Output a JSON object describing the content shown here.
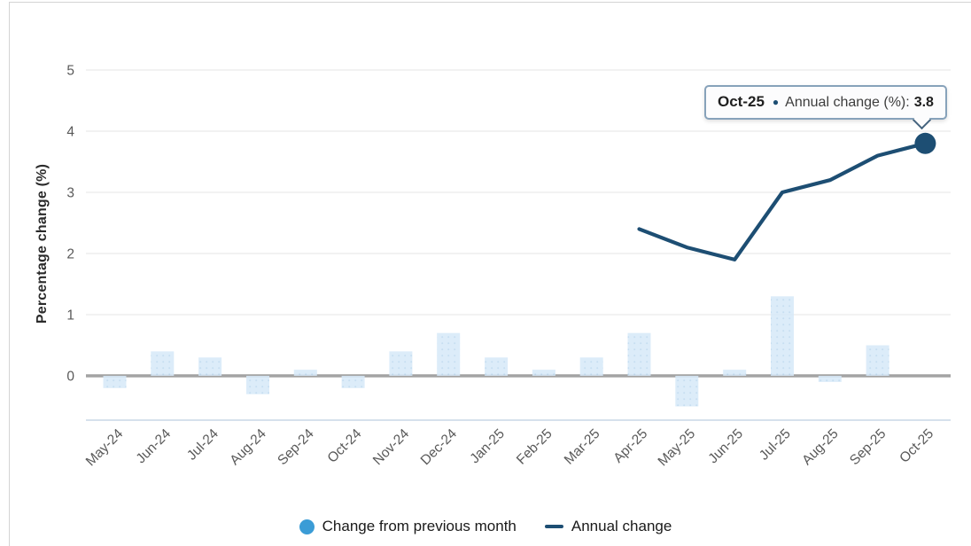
{
  "chart": {
    "y_axis_title": "Percentage change (%)",
    "tooltip": {
      "label": "Oct-25",
      "marker_glyph": "●",
      "series_text": "Annual change (%):",
      "value": "3.8"
    },
    "legend": {
      "items": [
        {
          "label": "Change from previous month",
          "marker": "circle",
          "color": "#3b9cd6"
        },
        {
          "label": "Annual change",
          "marker": "line",
          "color": "#1d4e73"
        }
      ],
      "position": "bottom"
    }
  },
  "chart_data": {
    "type": "bar+line",
    "categories": [
      "May-24",
      "Jun-24",
      "Jul-24",
      "Aug-24",
      "Sep-24",
      "Oct-24",
      "Nov-24",
      "Dec-24",
      "Jan-25",
      "Feb-25",
      "Mar-25",
      "Apr-25",
      "May-25",
      "Jun-25",
      "Jul-25",
      "Aug-25",
      "Sep-25",
      "Oct-25"
    ],
    "series": [
      {
        "name": "Change from previous month",
        "type": "bar",
        "values": [
          -0.2,
          0.4,
          0.3,
          -0.3,
          0.1,
          -0.2,
          0.4,
          0.7,
          0.3,
          0.1,
          0.3,
          0.7,
          -0.5,
          0.1,
          1.3,
          -0.1,
          0.5,
          null
        ]
      },
      {
        "name": "Annual change",
        "type": "line",
        "values": [
          null,
          null,
          null,
          null,
          null,
          null,
          null,
          null,
          null,
          null,
          null,
          2.4,
          2.1,
          1.9,
          3.0,
          3.2,
          3.6,
          3.8
        ]
      }
    ],
    "highlighted_point": {
      "category": "Oct-25",
      "series": "Annual change",
      "value": 3.8
    },
    "title": "",
    "xlabel": "",
    "ylabel": "Percentage change (%)",
    "yticks": [
      0,
      1,
      2,
      3,
      4,
      5
    ],
    "ylim": [
      -0.75,
      5.3
    ],
    "grid": true,
    "legend_position": "bottom"
  },
  "colors": {
    "bar_fill": "#d7e9f8",
    "bar_dot": "#bed9ef",
    "line": "#1d4e73",
    "legend_bar_marker": "#3b9cd6",
    "zero_line": "#a3a3a3",
    "gridline": "#e9e9e9",
    "bottom_axis": "#c9d7e5",
    "tick_text": "#595959",
    "tooltip_border": "#87a2ba"
  }
}
